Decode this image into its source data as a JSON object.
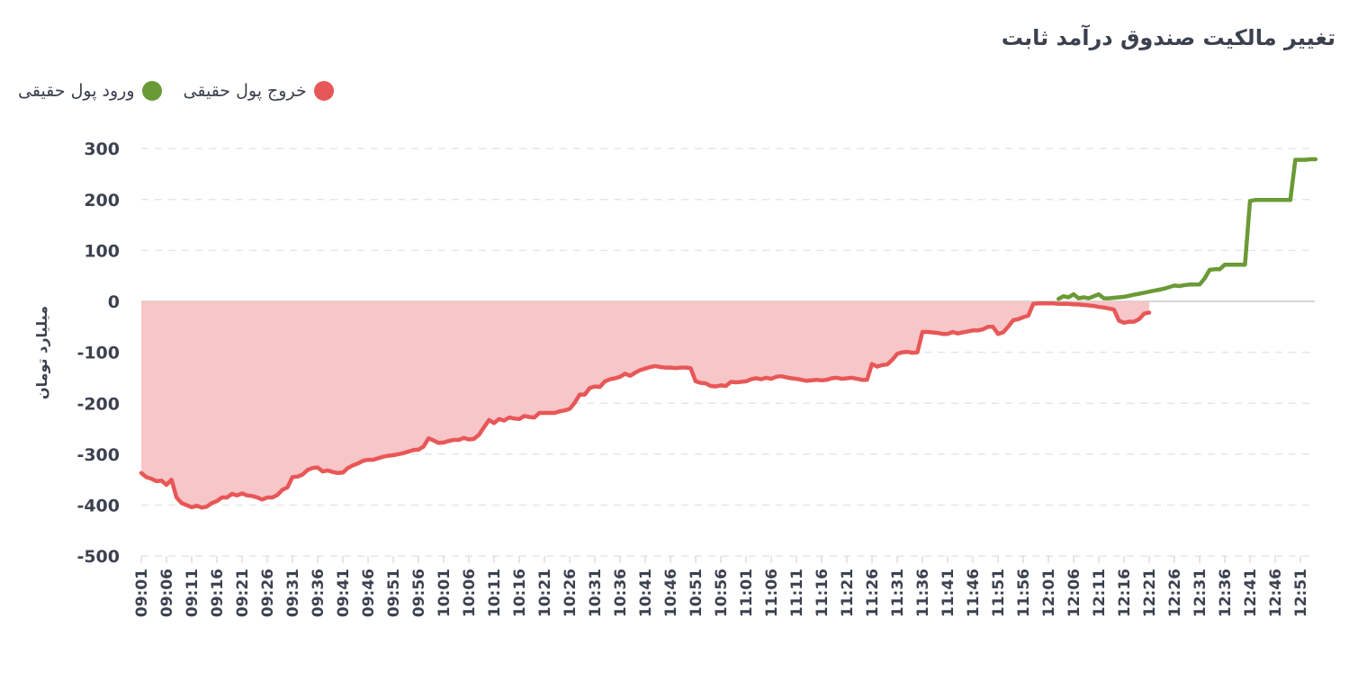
{
  "chart_data": {
    "type": "area",
    "title": "تغییر مالکیت صندوق درآمد ثابت",
    "ylabel": "میلیارد تومان",
    "xlabel": "",
    "ylim": [
      -500,
      300
    ],
    "yticks": [
      "300",
      "200",
      "100",
      "0",
      "-100",
      "-200",
      "-300",
      "-400",
      "-500"
    ],
    "ytick_values": [
      300,
      200,
      100,
      0,
      -100,
      -200,
      -300,
      -400,
      -500
    ],
    "x_range": [
      "09:01",
      "12:54"
    ],
    "categories": [
      "09:01",
      "09:06",
      "09:11",
      "09:16",
      "09:21",
      "09:26",
      "09:31",
      "09:36",
      "09:41",
      "09:46",
      "09:51",
      "09:56",
      "10:01",
      "10:06",
      "10:11",
      "10:16",
      "10:21",
      "10:26",
      "10:31",
      "10:36",
      "10:41",
      "10:46",
      "10:51",
      "10:56",
      "11:01",
      "11:06",
      "11:11",
      "11:16",
      "11:21",
      "11:26",
      "11:31",
      "11:36",
      "11:41",
      "11:46",
      "11:51",
      "11:56",
      "12:01",
      "12:06",
      "12:11",
      "12:16",
      "12:21",
      "12:26",
      "12:31",
      "12:36",
      "12:41",
      "12:46",
      "12:51"
    ],
    "legend_position": "top-left",
    "grid": "horizontal-dashed",
    "series": [
      {
        "name": "خروج پول حقیقی",
        "color": "#e85757",
        "fill": "#f6c6c8",
        "points": [
          [
            "09:01",
            -337
          ],
          [
            "09:02",
            -345
          ],
          [
            "09:03",
            -348
          ],
          [
            "09:04",
            -353
          ],
          [
            "09:05",
            -352
          ],
          [
            "09:06",
            -360
          ],
          [
            "09:07",
            -350
          ],
          [
            "09:08",
            -385
          ],
          [
            "09:09",
            -396
          ],
          [
            "09:10",
            -400
          ],
          [
            "09:11",
            -404
          ],
          [
            "09:12",
            -401
          ],
          [
            "09:13",
            -405
          ],
          [
            "09:14",
            -403
          ],
          [
            "09:15",
            -396
          ],
          [
            "09:16",
            -392
          ],
          [
            "09:17",
            -385
          ],
          [
            "09:18",
            -385
          ],
          [
            "09:19",
            -378
          ],
          [
            "09:20",
            -381
          ],
          [
            "09:21",
            -377
          ],
          [
            "09:22",
            -381
          ],
          [
            "09:23",
            -382
          ],
          [
            "09:24",
            -385
          ],
          [
            "09:25",
            -389
          ],
          [
            "09:26",
            -385
          ],
          [
            "09:27",
            -385
          ],
          [
            "09:28",
            -380
          ],
          [
            "09:29",
            -370
          ],
          [
            "09:30",
            -365
          ],
          [
            "09:31",
            -345
          ],
          [
            "09:32",
            -344
          ],
          [
            "09:33",
            -340
          ],
          [
            "09:34",
            -331
          ],
          [
            "09:35",
            -327
          ],
          [
            "09:36",
            -326
          ],
          [
            "09:37",
            -334
          ],
          [
            "09:38",
            -332
          ],
          [
            "09:39",
            -335
          ],
          [
            "09:40",
            -337
          ],
          [
            "09:41",
            -336
          ],
          [
            "09:42",
            -327
          ],
          [
            "09:43",
            -322
          ],
          [
            "09:44",
            -318
          ],
          [
            "09:45",
            -313
          ],
          [
            "09:46",
            -311
          ],
          [
            "09:47",
            -311
          ],
          [
            "09:48",
            -308
          ],
          [
            "09:49",
            -305
          ],
          [
            "09:50",
            -303
          ],
          [
            "09:51",
            -302
          ],
          [
            "09:52",
            -300
          ],
          [
            "09:53",
            -298
          ],
          [
            "09:54",
            -295
          ],
          [
            "09:55",
            -292
          ],
          [
            "09:56",
            -291
          ],
          [
            "09:57",
            -285
          ],
          [
            "09:58",
            -269
          ],
          [
            "09:59",
            -273
          ],
          [
            "10:00",
            -278
          ],
          [
            "10:01",
            -277
          ],
          [
            "10:02",
            -274
          ],
          [
            "10:03",
            -272
          ],
          [
            "10:04",
            -272
          ],
          [
            "10:05",
            -268
          ],
          [
            "10:06",
            -271
          ],
          [
            "10:07",
            -270
          ],
          [
            "10:08",
            -262
          ],
          [
            "10:09",
            -247
          ],
          [
            "10:10",
            -233
          ],
          [
            "10:11",
            -239
          ],
          [
            "10:12",
            -231
          ],
          [
            "10:13",
            -234
          ],
          [
            "10:14",
            -228
          ],
          [
            "10:15",
            -230
          ],
          [
            "10:16",
            -231
          ],
          [
            "10:17",
            -225
          ],
          [
            "10:18",
            -227
          ],
          [
            "10:19",
            -228
          ],
          [
            "10:20",
            -219
          ],
          [
            "10:21",
            -219
          ],
          [
            "10:22",
            -219
          ],
          [
            "10:23",
            -219
          ],
          [
            "10:24",
            -216
          ],
          [
            "10:25",
            -214
          ],
          [
            "10:26",
            -211
          ],
          [
            "10:27",
            -199
          ],
          [
            "10:28",
            -183
          ],
          [
            "10:29",
            -183
          ],
          [
            "10:30",
            -170
          ],
          [
            "10:31",
            -167
          ],
          [
            "10:32",
            -168
          ],
          [
            "10:33",
            -157
          ],
          [
            "10:34",
            -153
          ],
          [
            "10:35",
            -151
          ],
          [
            "10:36",
            -148
          ],
          [
            "10:37",
            -142
          ],
          [
            "10:38",
            -146
          ],
          [
            "10:39",
            -140
          ],
          [
            "10:40",
            -135
          ],
          [
            "10:41",
            -132
          ],
          [
            "10:42",
            -129
          ],
          [
            "10:43",
            -127
          ],
          [
            "10:44",
            -129
          ],
          [
            "10:45",
            -130
          ],
          [
            "10:46",
            -130
          ],
          [
            "10:47",
            -131
          ],
          [
            "10:48",
            -130
          ],
          [
            "10:49",
            -130
          ],
          [
            "10:50",
            -131
          ],
          [
            "10:51",
            -157
          ],
          [
            "10:52",
            -160
          ],
          [
            "10:53",
            -161
          ],
          [
            "10:54",
            -166
          ],
          [
            "10:55",
            -167
          ],
          [
            "10:56",
            -165
          ],
          [
            "10:57",
            -166
          ],
          [
            "10:58",
            -158
          ],
          [
            "10:59",
            -159
          ],
          [
            "11:00",
            -158
          ],
          [
            "11:01",
            -157
          ],
          [
            "11:02",
            -153
          ],
          [
            "11:03",
            -151
          ],
          [
            "11:04",
            -153
          ],
          [
            "11:05",
            -150
          ],
          [
            "11:06",
            -152
          ],
          [
            "11:07",
            -148
          ],
          [
            "11:08",
            -147
          ],
          [
            "11:09",
            -149
          ],
          [
            "11:10",
            -151
          ],
          [
            "11:11",
            -152
          ],
          [
            "11:12",
            -154
          ],
          [
            "11:13",
            -156
          ],
          [
            "11:14",
            -155
          ],
          [
            "11:15",
            -154
          ],
          [
            "11:16",
            -155
          ],
          [
            "11:17",
            -154
          ],
          [
            "11:18",
            -151
          ],
          [
            "11:19",
            -150
          ],
          [
            "11:20",
            -152
          ],
          [
            "11:21",
            -151
          ],
          [
            "11:22",
            -150
          ],
          [
            "11:23",
            -152
          ],
          [
            "11:24",
            -154
          ],
          [
            "11:25",
            -154
          ],
          [
            "11:26",
            -123
          ],
          [
            "11:27",
            -128
          ],
          [
            "11:28",
            -125
          ],
          [
            "11:29",
            -124
          ],
          [
            "11:30",
            -115
          ],
          [
            "11:31",
            -103
          ],
          [
            "11:32",
            -100
          ],
          [
            "11:33",
            -99
          ],
          [
            "11:34",
            -101
          ],
          [
            "11:35",
            -100
          ],
          [
            "11:36",
            -60
          ],
          [
            "11:37",
            -60
          ],
          [
            "11:38",
            -61
          ],
          [
            "11:39",
            -62
          ],
          [
            "11:40",
            -64
          ],
          [
            "11:41",
            -64
          ],
          [
            "11:42",
            -60
          ],
          [
            "11:43",
            -63
          ],
          [
            "11:44",
            -61
          ],
          [
            "11:45",
            -59
          ],
          [
            "11:46",
            -57
          ],
          [
            "11:47",
            -57
          ],
          [
            "11:48",
            -55
          ],
          [
            "11:49",
            -50
          ],
          [
            "11:50",
            -50
          ],
          [
            "11:51",
            -64
          ],
          [
            "11:52",
            -61
          ],
          [
            "11:53",
            -50
          ],
          [
            "11:54",
            -37
          ],
          [
            "11:55",
            -35
          ],
          [
            "11:56",
            -31
          ],
          [
            "11:57",
            -28
          ],
          [
            "11:58",
            -5
          ],
          [
            "11:59",
            -4
          ],
          [
            "12:00",
            -4
          ],
          [
            "12:01",
            -4
          ],
          [
            "12:02",
            -4
          ],
          [
            "12:03",
            -5
          ],
          [
            "12:04",
            -5
          ],
          [
            "12:05",
            -5
          ],
          [
            "12:06",
            -6
          ],
          [
            "12:07",
            -6
          ],
          [
            "12:08",
            -7
          ],
          [
            "12:09",
            -8
          ],
          [
            "12:10",
            -9
          ],
          [
            "12:11",
            -11
          ],
          [
            "12:12",
            -12
          ],
          [
            "12:13",
            -14
          ],
          [
            "12:14",
            -16
          ],
          [
            "12:15",
            -38
          ],
          [
            "12:16",
            -42
          ],
          [
            "12:17",
            -40
          ],
          [
            "12:18",
            -40
          ],
          [
            "12:19",
            -35
          ],
          [
            "12:20",
            -24
          ],
          [
            "12:21",
            -22
          ]
        ]
      },
      {
        "name": "ورود پول حقیقی",
        "color": "#6a9a35",
        "points": [
          [
            "12:03",
            5
          ],
          [
            "12:04",
            10
          ],
          [
            "12:05",
            8
          ],
          [
            "12:06",
            14
          ],
          [
            "12:07",
            6
          ],
          [
            "12:08",
            8
          ],
          [
            "12:09",
            6
          ],
          [
            "12:10",
            10
          ],
          [
            "12:11",
            14
          ],
          [
            "12:12",
            6
          ],
          [
            "12:13",
            6
          ],
          [
            "12:14",
            7
          ],
          [
            "12:15",
            8
          ],
          [
            "12:16",
            9
          ],
          [
            "12:17",
            11
          ],
          [
            "12:18",
            13
          ],
          [
            "12:19",
            15
          ],
          [
            "12:20",
            17
          ],
          [
            "12:21",
            19
          ],
          [
            "12:22",
            21
          ],
          [
            "12:23",
            23
          ],
          [
            "12:24",
            25
          ],
          [
            "12:25",
            28
          ],
          [
            "12:26",
            31
          ],
          [
            "12:27",
            30
          ],
          [
            "12:28",
            32
          ],
          [
            "12:29",
            33
          ],
          [
            "12:30",
            33
          ],
          [
            "12:31",
            33
          ],
          [
            "12:32",
            45
          ],
          [
            "12:33",
            62
          ],
          [
            "12:34",
            63
          ],
          [
            "12:35",
            63
          ],
          [
            "12:36",
            72
          ],
          [
            "12:37",
            72
          ],
          [
            "12:38",
            72
          ],
          [
            "12:39",
            72
          ],
          [
            "12:40",
            72
          ],
          [
            "12:41",
            197
          ],
          [
            "12:42",
            199
          ],
          [
            "12:43",
            199
          ],
          [
            "12:44",
            199
          ],
          [
            "12:45",
            199
          ],
          [
            "12:46",
            199
          ],
          [
            "12:47",
            199
          ],
          [
            "12:48",
            199
          ],
          [
            "12:49",
            199
          ],
          [
            "12:50",
            278
          ],
          [
            "12:51",
            278
          ],
          [
            "12:52",
            278
          ],
          [
            "12:53",
            279
          ],
          [
            "12:54",
            279
          ]
        ]
      }
    ]
  }
}
